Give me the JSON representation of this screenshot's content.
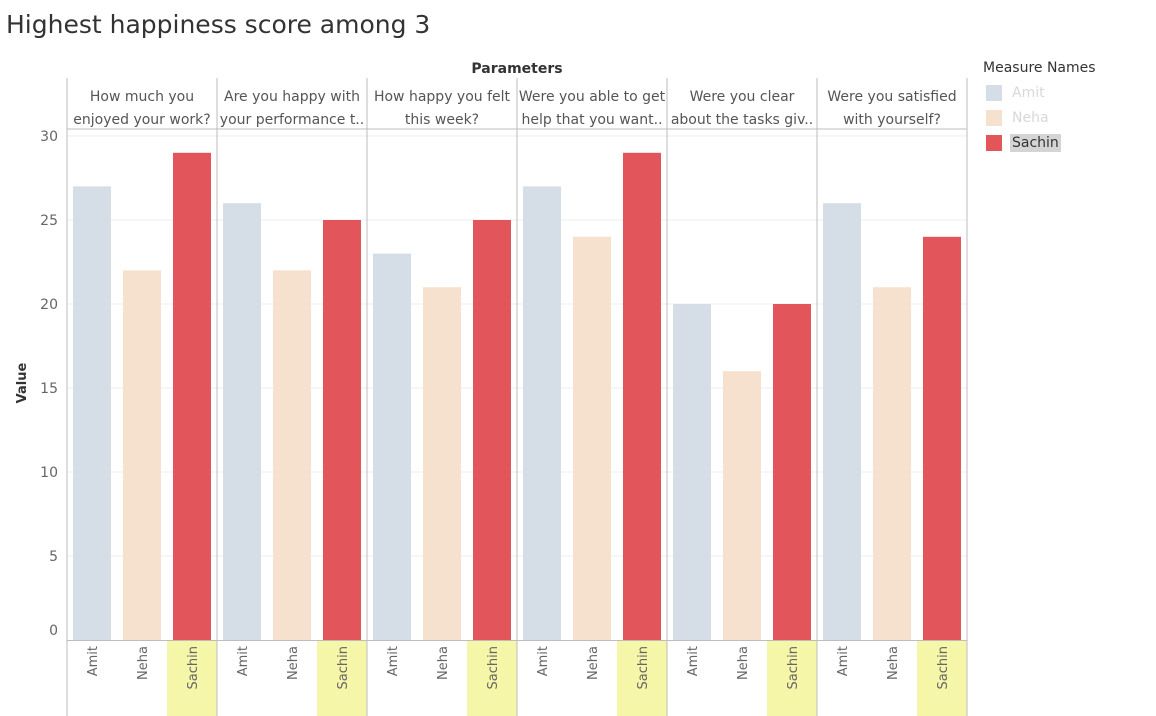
{
  "title": "Highest happiness score among 3",
  "legend": {
    "title": "Measure Names",
    "items": [
      {
        "label": "Amit",
        "color": "#d5dde6",
        "state": "dim"
      },
      {
        "label": "Neha",
        "color": "#f5e1cd",
        "state": "dim"
      },
      {
        "label": "Sachin",
        "color": "#e2555a",
        "state": "selected"
      }
    ]
  },
  "chart_data": {
    "type": "bar",
    "column_header": "Parameters",
    "ylabel": "Value",
    "ylim": [
      0,
      30
    ],
    "yticks": [
      0,
      5,
      10,
      15,
      20,
      25,
      30
    ],
    "grid": true,
    "highlighted_category": "Sachin",
    "highlight_color": "#f6f6a8",
    "categories": [
      "Amit",
      "Neha",
      "Sachin"
    ],
    "panels": [
      {
        "label_lines": [
          "How much you",
          "enjoyed your work?"
        ],
        "values": [
          27,
          22,
          29
        ]
      },
      {
        "label_lines": [
          "Are you happy with",
          "your performance t.."
        ],
        "values": [
          26,
          22,
          25
        ]
      },
      {
        "label_lines": [
          "How happy you felt",
          "this week?"
        ],
        "values": [
          23,
          21,
          25
        ]
      },
      {
        "label_lines": [
          "Were you able to get",
          "help that you want.."
        ],
        "values": [
          27,
          24,
          29
        ]
      },
      {
        "label_lines": [
          "Were you clear",
          "about the tasks giv.."
        ],
        "values": [
          20,
          16,
          20
        ]
      },
      {
        "label_lines": [
          "Were you satisfied",
          "with yourself?"
        ],
        "values": [
          26,
          21,
          24
        ]
      }
    ]
  }
}
